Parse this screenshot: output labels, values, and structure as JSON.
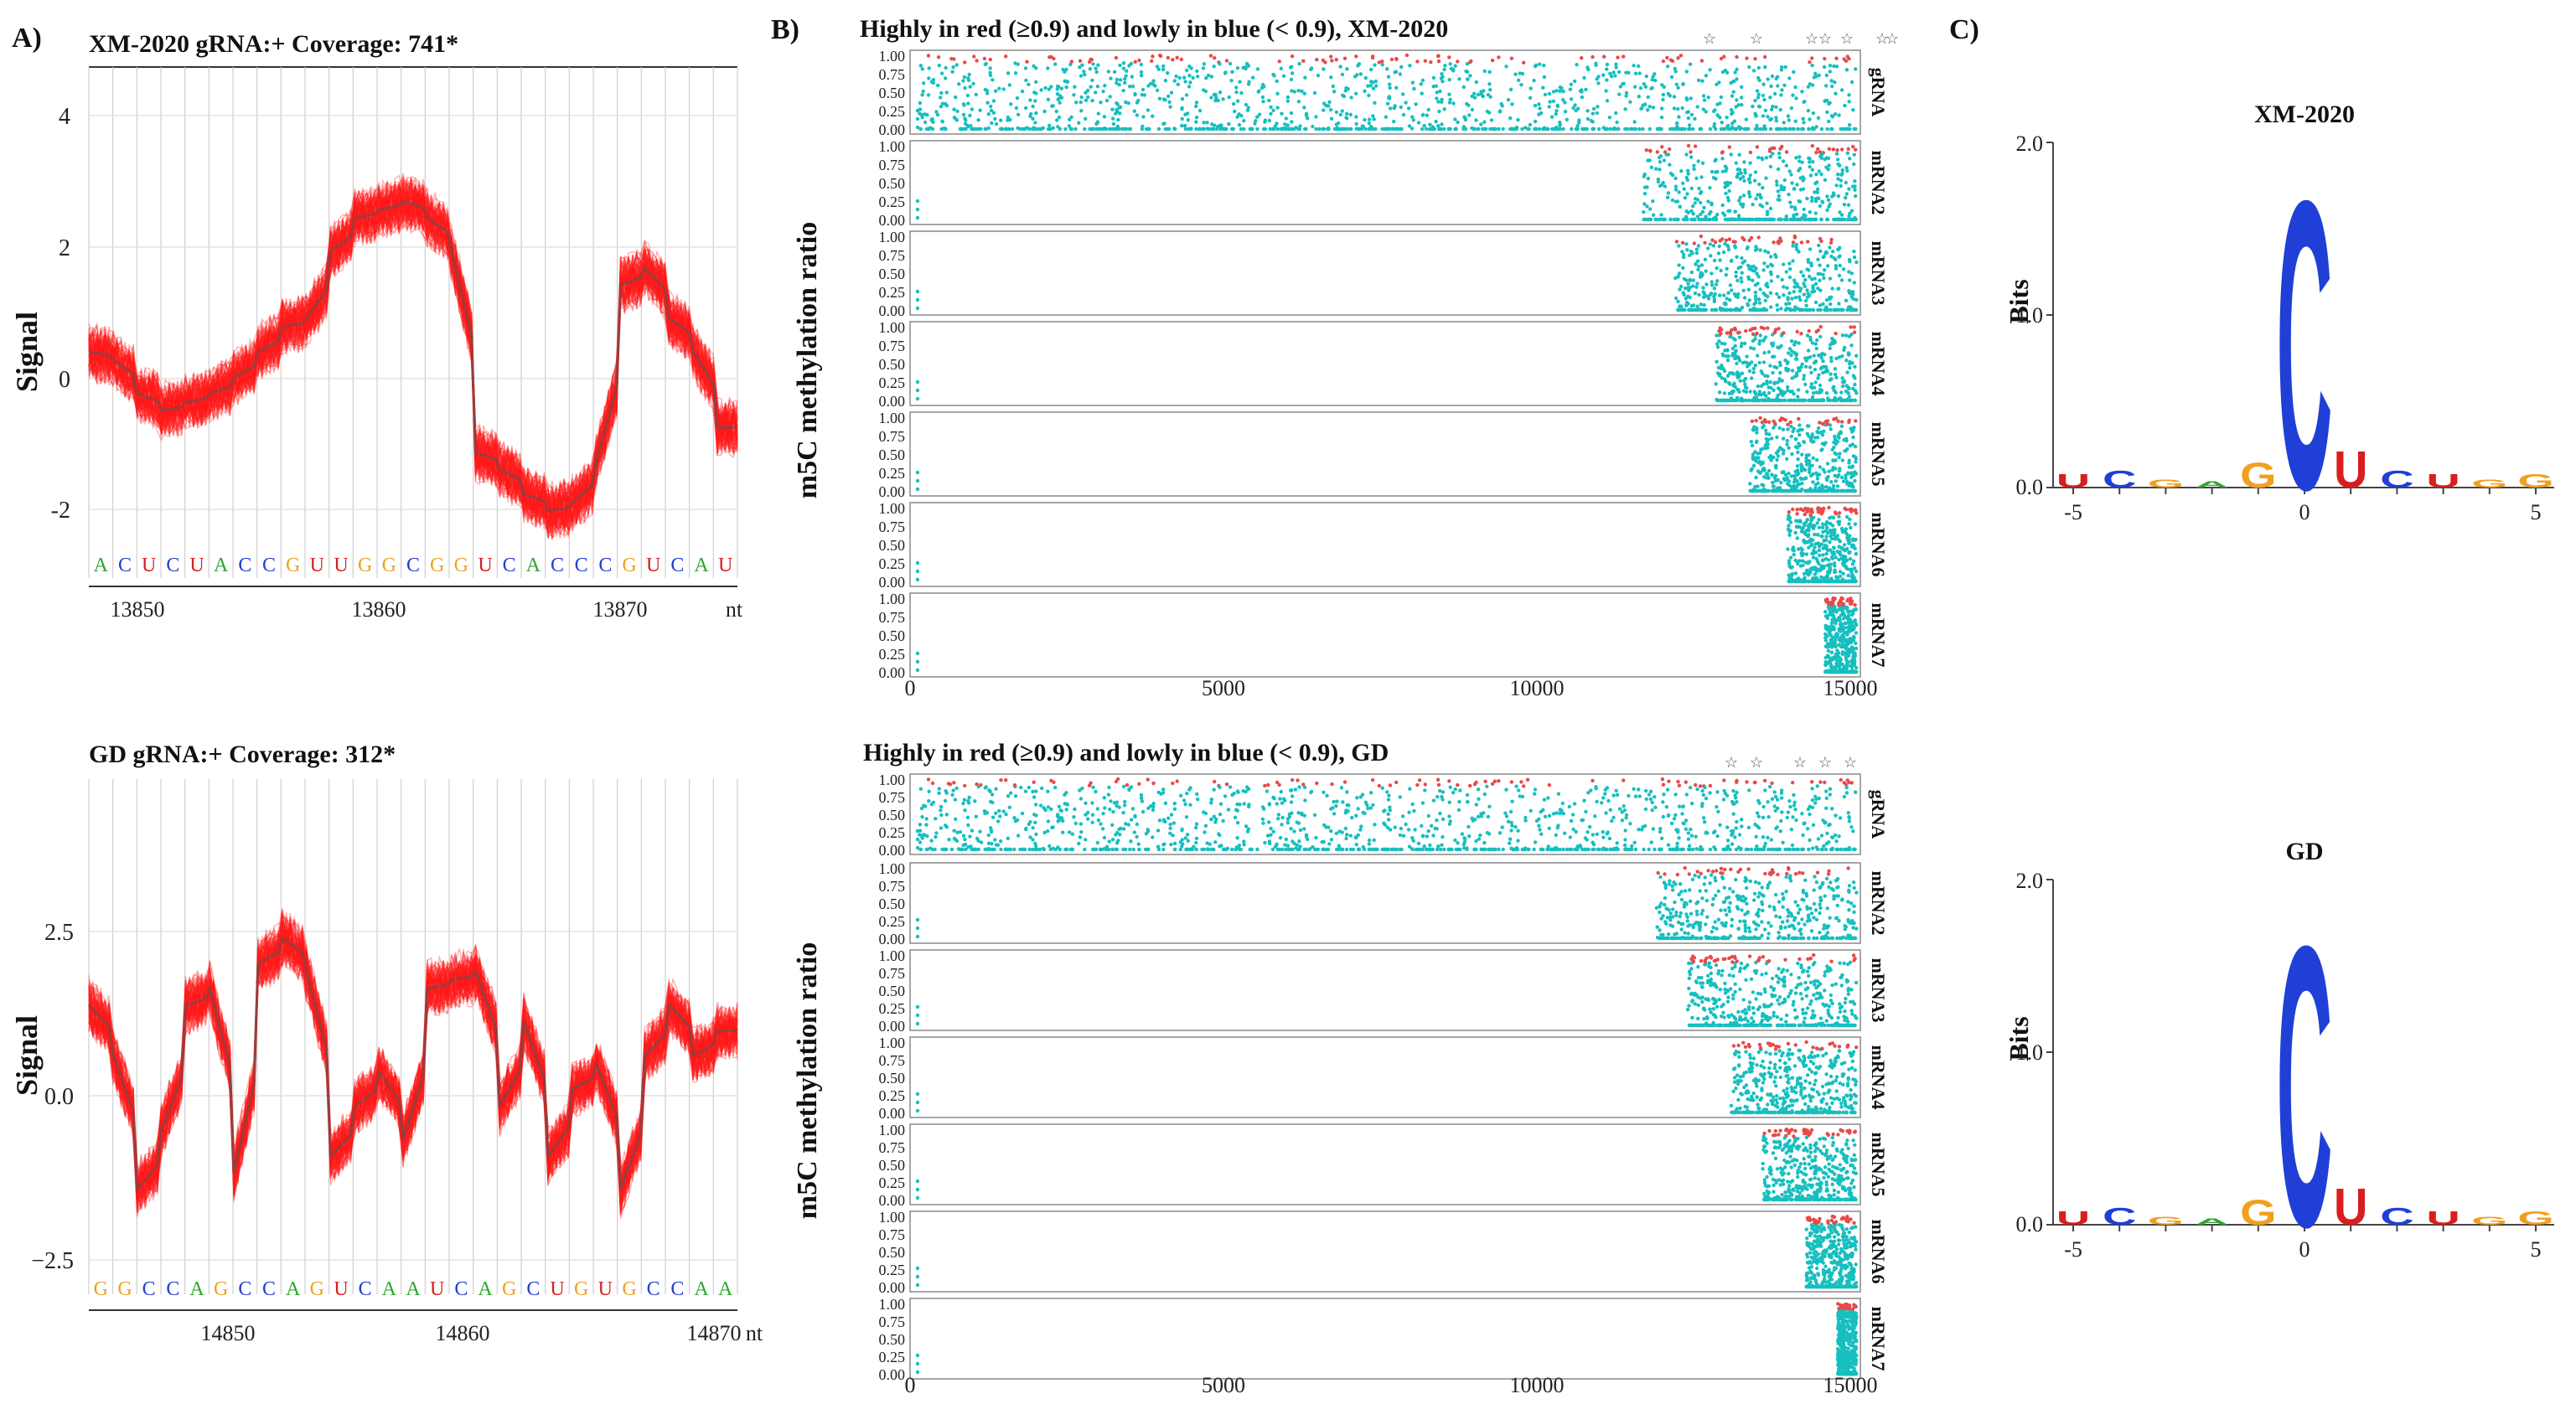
{
  "panel_labels": {
    "a": "A)",
    "b": "B)",
    "c": "C)"
  },
  "colors": {
    "signal_red": "#ff1a1a",
    "signal_gray": "#555555",
    "teal": "#17bfbf",
    "red_dot": "#e84a4a",
    "base_A": "#2fa52f",
    "base_C": "#1f3fd6",
    "base_G": "#f0a020",
    "base_U": "#d81e1e"
  },
  "panel_a": {
    "top": {
      "title": "XM-2020  gRNA:+  Coverage: 741*",
      "ylabel": "Signal",
      "yticks": [
        "4",
        "2",
        "0",
        "-2"
      ],
      "xticks": [
        "13850",
        "13860",
        "13870"
      ],
      "xunit": "nt",
      "bases": [
        "A",
        "C",
        "U",
        "C",
        "U",
        "A",
        "C",
        "C",
        "G",
        "U",
        "U",
        "G",
        "G",
        "C",
        "G",
        "G",
        "U",
        "C",
        "A",
        "C",
        "C",
        "C",
        "G",
        "U",
        "C",
        "A",
        "U"
      ]
    },
    "bottom": {
      "title": "GD  gRNA:+  Coverage: 312*",
      "ylabel": "Signal",
      "yticks": [
        "2.5",
        "0.0",
        "−2.5"
      ],
      "xticks": [
        "14850",
        "14860",
        "14870"
      ],
      "xunit": "nt",
      "bases": [
        "G",
        "G",
        "C",
        "C",
        "A",
        "G",
        "C",
        "C",
        "A",
        "G",
        "U",
        "C",
        "A",
        "A",
        "U",
        "C",
        "A",
        "G",
        "C",
        "U",
        "G",
        "U",
        "G",
        "C",
        "C",
        "A",
        "A"
      ]
    }
  },
  "panel_b": {
    "top": {
      "title": "Highly in red (≥0.9) and lowly in blue (< 0.9), XM-2020",
      "ylabel": "m5C methylation ratio",
      "row_labels": [
        "gRNA",
        "mRNA2",
        "mRNA3",
        "mRNA4",
        "mRNA5",
        "mRNA6",
        "mRNA7"
      ],
      "yticks": [
        "1.00",
        "0.75",
        "0.50",
        "0.25",
        "0.00"
      ],
      "xticks": [
        "0",
        "5000",
        "10000",
        "15000"
      ]
    },
    "bottom": {
      "title": "Highly in red (≥0.9) and lowly in blue (< 0.9), GD",
      "ylabel": "m5C methylation ratio",
      "row_labels": [
        "gRNA",
        "mRNA2",
        "mRNA3",
        "mRNA4",
        "mRNA5",
        "mRNA6",
        "mRNA7"
      ],
      "yticks": [
        "1.00",
        "0.75",
        "0.50",
        "0.25",
        "0.00"
      ],
      "xticks": [
        "0",
        "5000",
        "10000",
        "15000"
      ]
    }
  },
  "panel_c": {
    "top": {
      "title": "XM-2020",
      "ylabel": "Bits",
      "yticks": [
        "2.0",
        "1.0",
        "0.0"
      ],
      "xticks": [
        "-5",
        "0",
        "5"
      ],
      "center_base": "C",
      "center_height": 1.75
    },
    "bottom": {
      "title": "GD",
      "ylabel": "Bits",
      "yticks": [
        "2.0",
        "1.0",
        "0.0"
      ],
      "xticks": [
        "-5",
        "0",
        "5"
      ],
      "center_base": "C",
      "center_height": 1.7
    }
  }
}
